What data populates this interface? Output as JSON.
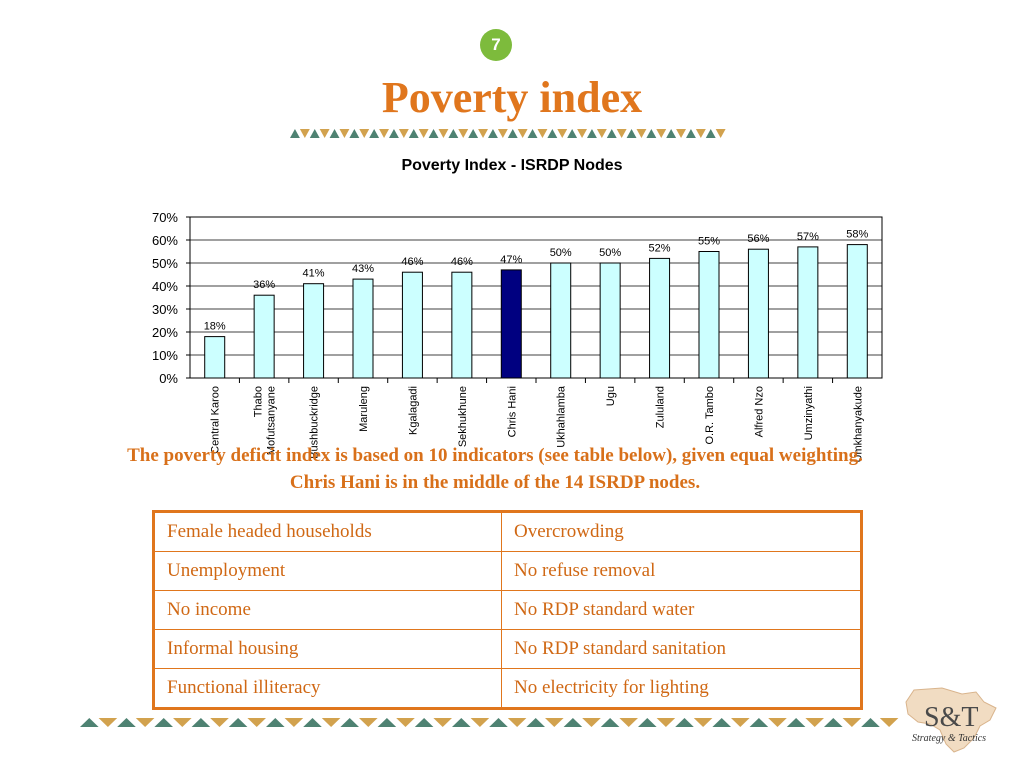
{
  "slide": {
    "number": "7",
    "title": "Poverty index",
    "caption_line1": "The poverty deficit index is based on 10 indicators (see table below), given equal weighting.",
    "caption_line2": "Chris Hani is in the middle of the 14 ISRDP nodes."
  },
  "colors": {
    "accent": "#e0761d",
    "badge": "#7dbb3c",
    "bar_fill": "#ccffff",
    "highlight_bar": "#000080",
    "deco_green": "#4e8272",
    "deco_gold": "#d2a24e"
  },
  "chart_data": {
    "type": "bar",
    "title": "Poverty Index - ISRDP Nodes",
    "categories": [
      "Central Karoo",
      "Thabo Mofutsanyane",
      "Bushbuckridge",
      "Maruleng",
      "Kgalagadi",
      "Sekhukhune",
      "Chris Hani",
      "Ukhahlamba",
      "Ugu",
      "Zululand",
      "O.R. Tambo",
      "Alfred Nzo",
      "Umzinyathi",
      "Umkhanyakude"
    ],
    "category_lines": [
      [
        "Central Karoo"
      ],
      [
        "Thabo",
        "Mofutsanyane"
      ],
      [
        "Bushbuckridge"
      ],
      [
        "Maruleng"
      ],
      [
        "Kgalagadi"
      ],
      [
        "Sekhukhune"
      ],
      [
        "Chris Hani"
      ],
      [
        "Ukhahlamba"
      ],
      [
        "Ugu"
      ],
      [
        "Zululand"
      ],
      [
        "O.R. Tambo"
      ],
      [
        "Alfred Nzo"
      ],
      [
        "Umzinyathi"
      ],
      [
        "Umkhanyakude"
      ]
    ],
    "values": [
      18,
      36,
      41,
      43,
      46,
      46,
      47,
      50,
      50,
      52,
      55,
      56,
      57,
      58
    ],
    "data_labels": [
      "18%",
      "36%",
      "41%",
      "43%",
      "46%",
      "46%",
      "47%",
      "50%",
      "50%",
      "52%",
      "55%",
      "56%",
      "57%",
      "58%"
    ],
    "highlight": "Chris Hani",
    "ylim": [
      0,
      70
    ],
    "yticks": [
      0,
      10,
      20,
      30,
      40,
      50,
      60,
      70
    ],
    "ytick_labels": [
      "0%",
      "10%",
      "20%",
      "30%",
      "40%",
      "50%",
      "60%",
      "70%"
    ],
    "grid": true
  },
  "table": {
    "rows": [
      [
        "Female headed households",
        "Overcrowding"
      ],
      [
        "Unemployment",
        "No refuse removal"
      ],
      [
        "No income",
        "No RDP standard water"
      ],
      [
        "Informal housing",
        "No RDP standard sanitation"
      ],
      [
        "Functional illiteracy",
        "No electricity for lighting"
      ]
    ]
  },
  "logo": {
    "mark": "S&T",
    "tagline": "Strategy & Tactics"
  }
}
